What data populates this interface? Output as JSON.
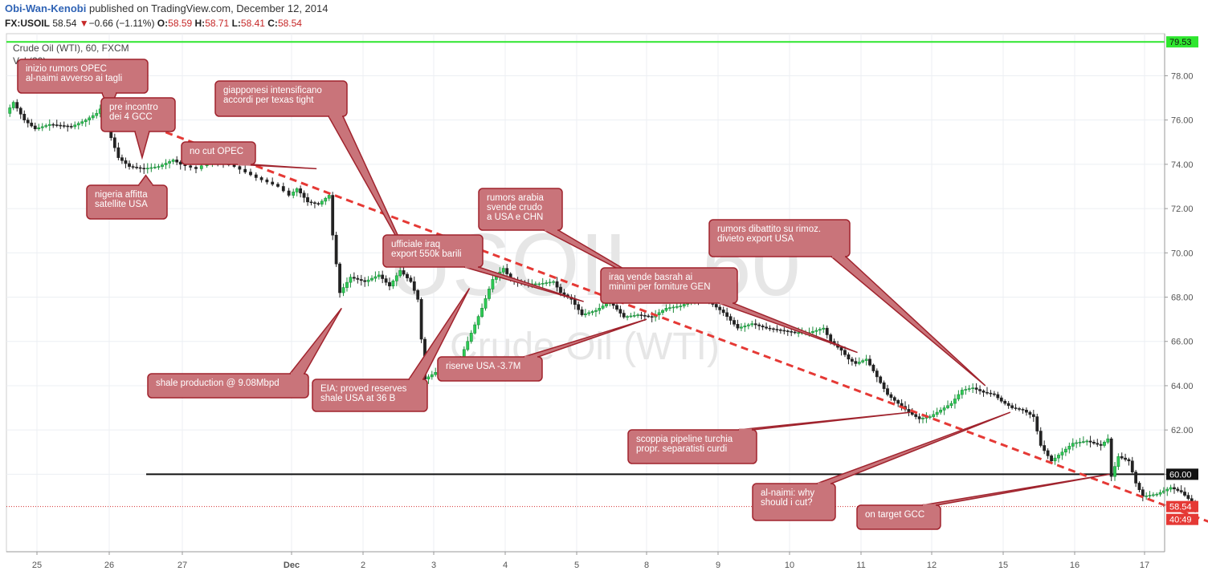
{
  "header": {
    "author": "Obi-Wan-Kenobi",
    "published": "published on TradingView.com, December 12, 2014"
  },
  "quote": {
    "symbol": "FX:USOIL",
    "last": "58.54",
    "arrow": "▼",
    "change": "−0.66 (−1.11%)",
    "o_label": "O:",
    "o": "58.59",
    "h_label": "H:",
    "h": "58.71",
    "l_label": "L:",
    "l": "58.41",
    "c_label": "C:",
    "c": "58.54"
  },
  "chart_data": {
    "type": "candlestick",
    "title": "Crude Oil (WTI), 60, FXCM",
    "volume_label": "Vol (20)",
    "watermark_symbol": "USOIL, 60",
    "watermark_name": "Crude Oil (WTI)",
    "x_ticks": [
      "25",
      "26",
      "27",
      "Dec",
      "2",
      "3",
      "4",
      "5",
      "8",
      "9",
      "10",
      "11",
      "12",
      "15",
      "16",
      "17"
    ],
    "y_ticks": [
      "78.00",
      "76.00",
      "74.00",
      "72.00",
      "70.00",
      "68.00",
      "66.00",
      "64.00",
      "62.00",
      "60.00"
    ],
    "ylim": [
      56.5,
      79.9
    ],
    "price_badges": {
      "top_line": "79.53",
      "support": "60.00",
      "last_price": "58.54",
      "countdown": "40:49"
    },
    "top_line_value": 79.53,
    "support_value": 60.0,
    "last_price_value": 58.54,
    "trendline": {
      "from": [
        1.0,
        76.4
      ],
      "to": [
        16.9,
        56.7
      ]
    },
    "path": [
      [
        -0.4,
        76.3
      ],
      [
        -0.3,
        76.8
      ],
      [
        -0.15,
        76.0
      ],
      [
        0.0,
        75.6
      ],
      [
        0.2,
        75.8
      ],
      [
        0.5,
        75.7
      ],
      [
        0.7,
        76.0
      ],
      [
        0.85,
        76.3
      ],
      [
        0.95,
        76.7
      ],
      [
        1.05,
        75.2
      ],
      [
        1.15,
        74.3
      ],
      [
        1.3,
        73.9
      ],
      [
        1.5,
        73.8
      ],
      [
        1.7,
        73.9
      ],
      [
        1.9,
        74.2
      ],
      [
        2.0,
        74.0
      ],
      [
        2.15,
        73.8
      ],
      [
        2.3,
        74.2
      ],
      [
        2.5,
        73.9
      ],
      [
        2.7,
        73.4
      ],
      [
        2.9,
        73.0
      ],
      [
        3.0,
        72.6
      ],
      [
        3.1,
        72.9
      ],
      [
        3.25,
        72.3
      ],
      [
        3.4,
        72.2
      ],
      [
        3.55,
        72.6
      ],
      [
        3.6,
        70.8
      ],
      [
        3.7,
        68.2
      ],
      [
        3.85,
        68.9
      ],
      [
        4.05,
        68.7
      ],
      [
        4.25,
        69.0
      ],
      [
        4.4,
        68.5
      ],
      [
        4.55,
        69.2
      ],
      [
        4.7,
        68.7
      ],
      [
        4.8,
        67.9
      ],
      [
        4.9,
        64.3
      ],
      [
        5.05,
        64.6
      ],
      [
        5.25,
        64.5
      ],
      [
        5.35,
        64.9
      ],
      [
        5.5,
        66.0
      ],
      [
        5.7,
        67.5
      ],
      [
        5.85,
        68.8
      ],
      [
        6.0,
        69.3
      ],
      [
        6.1,
        68.8
      ],
      [
        6.3,
        68.6
      ],
      [
        6.5,
        68.6
      ],
      [
        6.7,
        68.7
      ],
      [
        6.8,
        68.2
      ],
      [
        6.95,
        67.9
      ],
      [
        7.1,
        67.2
      ],
      [
        7.3,
        67.4
      ],
      [
        7.5,
        67.8
      ],
      [
        7.7,
        67.1
      ],
      [
        7.9,
        67.2
      ],
      [
        8.1,
        67.1
      ],
      [
        8.3,
        67.5
      ],
      [
        8.5,
        67.6
      ],
      [
        8.7,
        67.9
      ],
      [
        8.9,
        67.8
      ],
      [
        9.1,
        67.3
      ],
      [
        9.3,
        66.6
      ],
      [
        9.5,
        66.8
      ],
      [
        9.7,
        66.6
      ],
      [
        9.9,
        66.5
      ],
      [
        10.1,
        66.4
      ],
      [
        10.3,
        66.4
      ],
      [
        10.5,
        66.6
      ],
      [
        10.6,
        66.0
      ],
      [
        10.75,
        65.6
      ],
      [
        10.85,
        65.2
      ],
      [
        10.95,
        65.0
      ],
      [
        11.1,
        65.2
      ],
      [
        11.25,
        64.4
      ],
      [
        11.4,
        63.6
      ],
      [
        11.55,
        63.2
      ],
      [
        11.7,
        62.8
      ],
      [
        11.85,
        62.5
      ],
      [
        12.0,
        62.6
      ],
      [
        12.15,
        62.9
      ],
      [
        12.3,
        63.2
      ],
      [
        12.45,
        63.8
      ],
      [
        12.6,
        63.9
      ],
      [
        12.75,
        63.7
      ],
      [
        12.9,
        63.6
      ],
      [
        13.0,
        63.3
      ],
      [
        13.15,
        63.0
      ],
      [
        13.3,
        62.9
      ],
      [
        13.45,
        62.6
      ],
      [
        13.55,
        61.3
      ],
      [
        13.7,
        60.6
      ],
      [
        13.85,
        61.0
      ],
      [
        14.0,
        61.4
      ],
      [
        14.2,
        61.5
      ],
      [
        14.4,
        61.3
      ],
      [
        14.5,
        61.6
      ],
      [
        14.55,
        59.9
      ],
      [
        14.65,
        60.8
      ],
      [
        14.8,
        60.6
      ],
      [
        14.9,
        59.6
      ],
      [
        15.0,
        59.0
      ],
      [
        15.2,
        59.1
      ],
      [
        15.4,
        59.4
      ],
      [
        15.55,
        59.2
      ],
      [
        15.65,
        58.9
      ],
      [
        15.75,
        58.5
      ]
    ],
    "annotations": [
      {
        "id": "opec-rumors",
        "lines": [
          "inizio rumors OPEC",
          "al-naimi avverso ai tagli"
        ],
        "tip": [
          1.0,
          76.4
        ]
      },
      {
        "id": "gcc-meeting",
        "lines": [
          "pre incontro",
          "dei 4 GCC"
        ],
        "tip": [
          1.45,
          74.3
        ]
      },
      {
        "id": "japan",
        "lines": [
          "giapponesi intensificano",
          "accordi per texas tight"
        ],
        "tip": [
          4.65,
          69.7
        ]
      },
      {
        "id": "no-cut",
        "lines": [
          "no cut OPEC"
        ],
        "tip": [
          3.35,
          73.8
        ]
      },
      {
        "id": "nigeria",
        "lines": [
          "nigeria affitta",
          "satellite USA"
        ],
        "tip": [
          1.5,
          73.5
        ]
      },
      {
        "id": "shale",
        "lines": [
          "shale production @ 9.08Mbpd"
        ],
        "tip": [
          3.7,
          67.5
        ]
      },
      {
        "id": "eia",
        "lines": [
          "EIA: proved reserves",
          "shale USA at 36 B"
        ],
        "tip": [
          5.5,
          68.4
        ]
      },
      {
        "id": "iraq-export",
        "lines": [
          "ufficiale iraq",
          "export 550k barili"
        ],
        "tip": [
          7.1,
          67.8
        ]
      },
      {
        "id": "saudi",
        "lines": [
          "rumors arabia",
          "svende crudo",
          "a USA e CHN"
        ],
        "tip": [
          8.3,
          68.1
        ]
      },
      {
        "id": "usa-reserve",
        "lines": [
          "riserve USA -3.7M"
        ],
        "tip": [
          8.0,
          67.0
        ]
      },
      {
        "id": "iraq-basrah",
        "lines": [
          "iraq vende basrah ai",
          "minimi per forniture GEN"
        ],
        "tip": [
          10.95,
          65.5
        ]
      },
      {
        "id": "export-ban",
        "lines": [
          "rumors dibattito su rimoz.",
          "divieto export USA"
        ],
        "tip": [
          12.75,
          64.0
        ]
      },
      {
        "id": "pipeline",
        "lines": [
          "scoppia pipeline turchia",
          "propr. separatisti curdi"
        ],
        "tip": [
          11.7,
          62.8
        ]
      },
      {
        "id": "naimi-why",
        "lines": [
          "al-naimi: why",
          "should i cut?"
        ],
        "tip": [
          13.1,
          62.8
        ]
      },
      {
        "id": "gcc-target",
        "lines": [
          "on target GCC"
        ],
        "tip": [
          14.5,
          60.0
        ]
      }
    ]
  }
}
